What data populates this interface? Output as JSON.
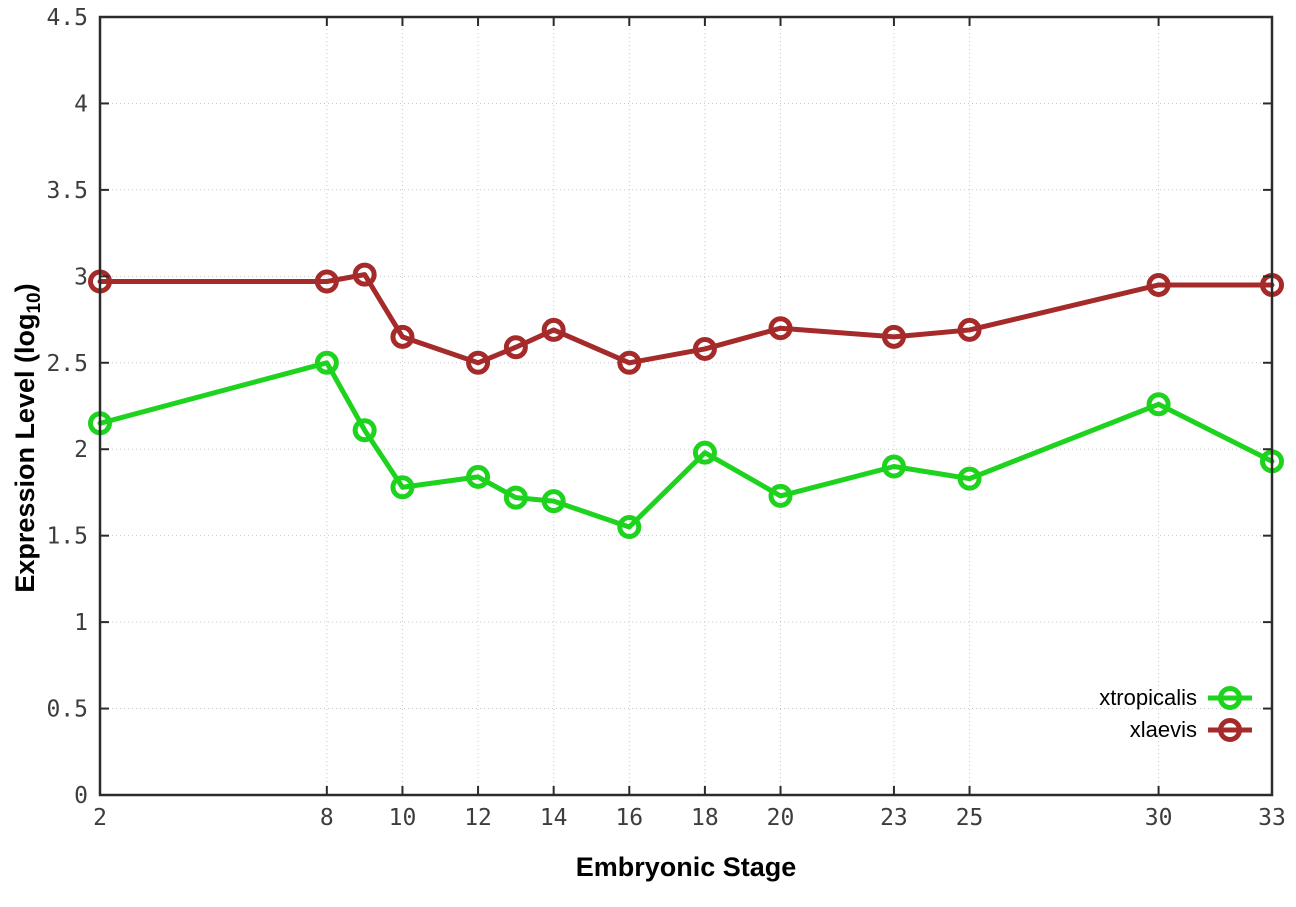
{
  "page": {
    "background": "#ffffff",
    "axis_color": "#2b2b2b",
    "grid_color": "#c8c8c8",
    "tick_label_color": "#3d3d3d"
  },
  "chart_data": {
    "type": "line",
    "title": "",
    "xlabel": "Embryonic Stage",
    "ylabel_prefix": "Expression Level (log",
    "ylabel_sub": "10",
    "ylabel_suffix": ")",
    "x": [
      2,
      8,
      9,
      10,
      12,
      13,
      14,
      16,
      18,
      20,
      23,
      25,
      30,
      33
    ],
    "series": [
      {
        "name": "xtropicalis",
        "color": "#1dd31d",
        "marker": "open-circle",
        "values": [
          2.15,
          2.5,
          2.11,
          1.78,
          1.84,
          1.72,
          1.7,
          1.55,
          1.98,
          1.73,
          1.9,
          1.83,
          2.26,
          1.93
        ]
      },
      {
        "name": "xlaevis",
        "color": "#a52a2a",
        "marker": "open-circle",
        "values": [
          2.97,
          2.97,
          3.01,
          2.65,
          2.5,
          2.59,
          2.69,
          2.5,
          2.58,
          2.7,
          2.65,
          2.69,
          2.95,
          2.95
        ]
      }
    ],
    "xlim": [
      2,
      33
    ],
    "ylim": [
      0,
      4.5
    ],
    "x_tick_values": [
      2,
      8,
      10,
      12,
      14,
      16,
      18,
      20,
      23,
      25,
      30,
      33
    ],
    "x_tick_labels": [
      "2",
      "8",
      "10",
      "12",
      "14",
      "16",
      "18",
      "20",
      "23",
      "25",
      "30",
      "33"
    ],
    "y_tick_values": [
      0,
      0.5,
      1,
      1.5,
      2,
      2.5,
      3,
      3.5,
      4,
      4.5
    ],
    "y_tick_labels": [
      "0",
      "0.5",
      "1",
      "1.5",
      "2",
      "2.5",
      "3",
      "3.5",
      "4",
      "4.5"
    ],
    "grid": true,
    "legend_position": "inside-bottom-right"
  }
}
